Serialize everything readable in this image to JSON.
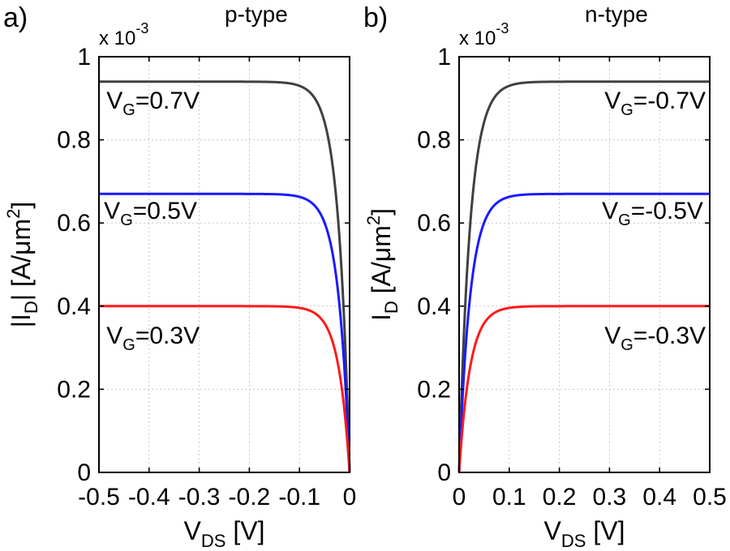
{
  "chart_data": [
    {
      "type": "line",
      "panel_label": "a)",
      "title": "p-type",
      "scale_label": "x 10",
      "scale_exponent": "-3",
      "xlabel_main": "V",
      "xlabel_sub": "DS",
      "xlabel_unit": " [V]",
      "ylabel_pre": "|I",
      "ylabel_sub": "D",
      "ylabel_post": "|  [A/μm",
      "ylabel_sup": "2",
      "ylabel_end": "]",
      "xlim": [
        -0.5,
        0
      ],
      "ylim": [
        0,
        1
      ],
      "xticks": [
        -0.5,
        -0.4,
        -0.3,
        -0.2,
        -0.1,
        0
      ],
      "xtick_labels": [
        "-0.5",
        "-0.4",
        "-0.3",
        "-0.2",
        "-0.1",
        "0"
      ],
      "yticks": [
        0,
        0.2,
        0.4,
        0.6,
        0.8,
        1
      ],
      "ytick_labels": [
        "0",
        "0.2",
        "0.4",
        "0.6",
        "0.8",
        "1"
      ],
      "grid": true,
      "series": [
        {
          "name": "VG=0.7V",
          "label_main": "V",
          "label_sub": "G",
          "label_rest": "=0.7V",
          "color": "#404040",
          "isat": 0.94,
          "vsat": 0.022,
          "label_x": -0.485,
          "label_y": 0.875
        },
        {
          "name": "VG=0.5V",
          "label_main": "V",
          "label_sub": "G",
          "label_rest": "=0.5V",
          "color": "#1a1aff",
          "isat": 0.67,
          "vsat": 0.022,
          "label_x": -0.49,
          "label_y": 0.61
        },
        {
          "name": "VG=0.3V",
          "label_main": "V",
          "label_sub": "G",
          "label_rest": "=0.3V",
          "color": "#ff1a1a",
          "isat": 0.4,
          "vsat": 0.022,
          "label_x": -0.485,
          "label_y": 0.31
        }
      ]
    },
    {
      "type": "line",
      "panel_label": "b)",
      "title": "n-type",
      "scale_label": "x 10",
      "scale_exponent": "-3",
      "xlabel_main": "V",
      "xlabel_sub": "DS",
      "xlabel_unit": " [V]",
      "ylabel_pre": "I",
      "ylabel_sub": "D",
      "ylabel_post": " [A/μm",
      "ylabel_sup": "2",
      "ylabel_end": "]",
      "xlim": [
        0,
        0.5
      ],
      "ylim": [
        0,
        1
      ],
      "xticks": [
        0,
        0.1,
        0.2,
        0.3,
        0.4,
        0.5
      ],
      "xtick_labels": [
        "0",
        "0.1",
        "0.2",
        "0.3",
        "0.4",
        "0.5"
      ],
      "yticks": [
        0,
        0.2,
        0.4,
        0.6,
        0.8,
        1
      ],
      "ytick_labels": [
        "0",
        "0.2",
        "0.4",
        "0.6",
        "0.8",
        "1"
      ],
      "grid": true,
      "series": [
        {
          "name": "VG=-0.7V",
          "label_main": "V",
          "label_sub": "G",
          "label_rest": "=-0.7V",
          "color": "#404040",
          "isat": 0.94,
          "vsat": 0.022,
          "label_x": 0.29,
          "label_y": 0.875
        },
        {
          "name": "VG=-0.5V",
          "label_main": "V",
          "label_sub": "G",
          "label_rest": "=-0.5V",
          "color": "#1a1aff",
          "isat": 0.67,
          "vsat": 0.022,
          "label_x": 0.285,
          "label_y": 0.61
        },
        {
          "name": "VG=-0.3V",
          "label_main": "V",
          "label_sub": "G",
          "label_rest": "=-0.3V",
          "color": "#ff1a1a",
          "isat": 0.4,
          "vsat": 0.022,
          "label_x": 0.29,
          "label_y": 0.31
        }
      ]
    }
  ]
}
